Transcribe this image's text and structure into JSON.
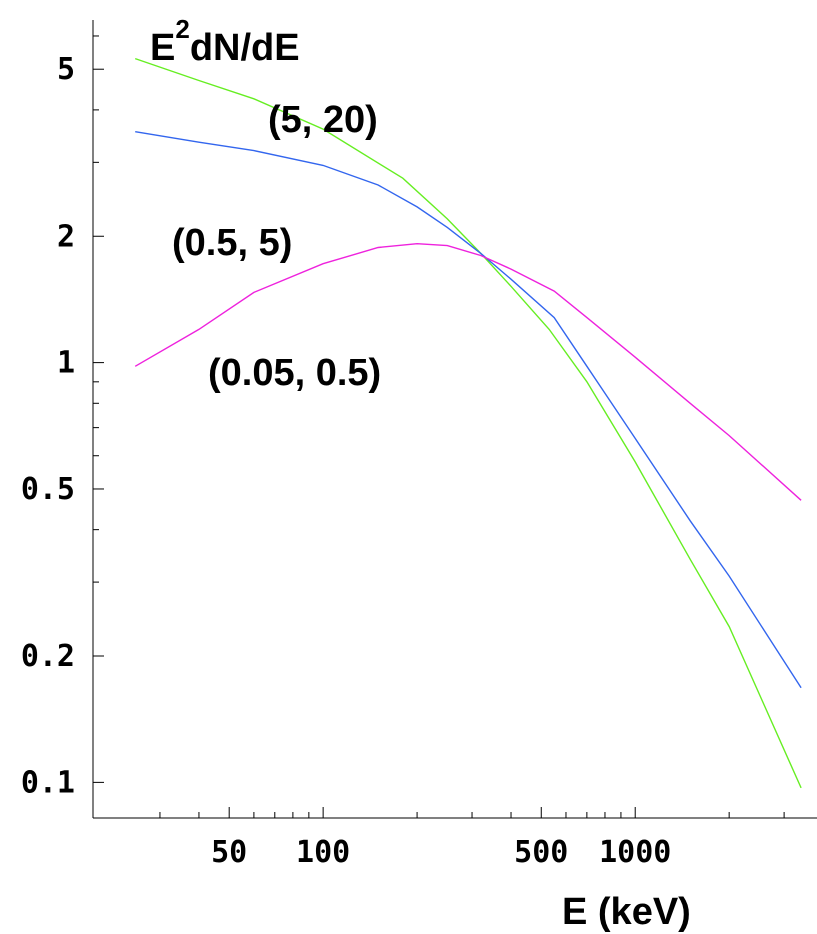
{
  "chart_data": {
    "type": "line",
    "x_scale": "log",
    "y_scale": "log",
    "xlabel": "E (keV)",
    "ylabel": {
      "base": "E",
      "sup": "2",
      "rest": "dN/dE"
    },
    "xlim": [
      20,
      3500
    ],
    "ylim": [
      0.085,
      6.2
    ],
    "x_ticks": [
      {
        "value": 50,
        "label": "50"
      },
      {
        "value": 100,
        "label": "100"
      },
      {
        "value": 500,
        "label": "500"
      },
      {
        "value": 1000,
        "label": "1000"
      }
    ],
    "x_minor_ticks": [
      30,
      40,
      60,
      70,
      80,
      90,
      200,
      300,
      400,
      600,
      700,
      800,
      900,
      2000,
      3000
    ],
    "y_ticks": [
      {
        "value": 0.1,
        "label": "0.1"
      },
      {
        "value": 0.2,
        "label": "0.2"
      },
      {
        "value": 0.5,
        "label": "0.5"
      },
      {
        "value": 1,
        "label": "1"
      },
      {
        "value": 2,
        "label": "2"
      },
      {
        "value": 5,
        "label": "5"
      }
    ],
    "y_minor_ticks": [
      0.3,
      0.4,
      0.6,
      0.7,
      0.8,
      0.9,
      3,
      4,
      6
    ],
    "series": [
      {
        "name": "(5, 20)",
        "color": "#66ee22",
        "x": [
          25,
          40,
          60,
          100,
          180,
          250,
          320,
          400,
          530,
          700,
          1000,
          1500,
          2000,
          3400
        ],
        "y": [
          5.3,
          4.7,
          4.25,
          3.6,
          2.75,
          2.2,
          1.82,
          1.52,
          1.2,
          0.9,
          0.58,
          0.34,
          0.235,
          0.097
        ]
      },
      {
        "name": "(0.5, 5)",
        "color": "#3366ee",
        "x": [
          25,
          40,
          60,
          100,
          150,
          200,
          250,
          320,
          400,
          550,
          700,
          1000,
          1500,
          2000,
          3400
        ],
        "y": [
          3.55,
          3.35,
          3.2,
          2.95,
          2.65,
          2.35,
          2.1,
          1.82,
          1.58,
          1.28,
          0.98,
          0.66,
          0.42,
          0.31,
          0.168
        ]
      },
      {
        "name": "(0.05, 0.5)",
        "color": "#ee22dd",
        "x": [
          25,
          40,
          60,
          100,
          150,
          200,
          250,
          320,
          400,
          550,
          700,
          1000,
          1500,
          2000,
          3400
        ],
        "y": [
          0.98,
          1.2,
          1.47,
          1.72,
          1.88,
          1.92,
          1.9,
          1.8,
          1.67,
          1.48,
          1.28,
          1.03,
          0.8,
          0.67,
          0.47
        ]
      }
    ]
  }
}
